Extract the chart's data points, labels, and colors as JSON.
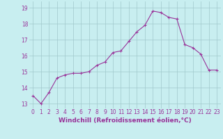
{
  "x": [
    0,
    1,
    2,
    3,
    4,
    5,
    6,
    7,
    8,
    9,
    10,
    11,
    12,
    13,
    14,
    15,
    16,
    17,
    18,
    19,
    20,
    21,
    22,
    23
  ],
  "y": [
    13.5,
    13.0,
    13.7,
    14.6,
    14.8,
    14.9,
    14.9,
    15.0,
    15.4,
    15.6,
    16.2,
    16.3,
    16.9,
    17.5,
    17.9,
    18.8,
    18.7,
    18.4,
    18.3,
    16.7,
    16.5,
    16.1,
    15.1,
    15.1
  ],
  "line_color": "#993399",
  "marker": "+",
  "marker_size": 3,
  "marker_linewidth": 0.8,
  "background_color": "#c8eef0",
  "grid_color": "#a0c8cc",
  "xlabel": "Windchill (Refroidissement éolien,°C)",
  "xlabel_fontsize": 6.5,
  "xlabel_color": "#993399",
  "tick_color": "#993399",
  "tick_fontsize": 5.5,
  "yticks": [
    13,
    14,
    15,
    16,
    17,
    18,
    19
  ],
  "xticks": [
    0,
    1,
    2,
    3,
    4,
    5,
    6,
    7,
    8,
    9,
    10,
    11,
    12,
    13,
    14,
    15,
    16,
    17,
    18,
    19,
    20,
    21,
    22,
    23
  ],
  "ylim": [
    12.7,
    19.4
  ],
  "xlim": [
    -0.5,
    23.5
  ]
}
